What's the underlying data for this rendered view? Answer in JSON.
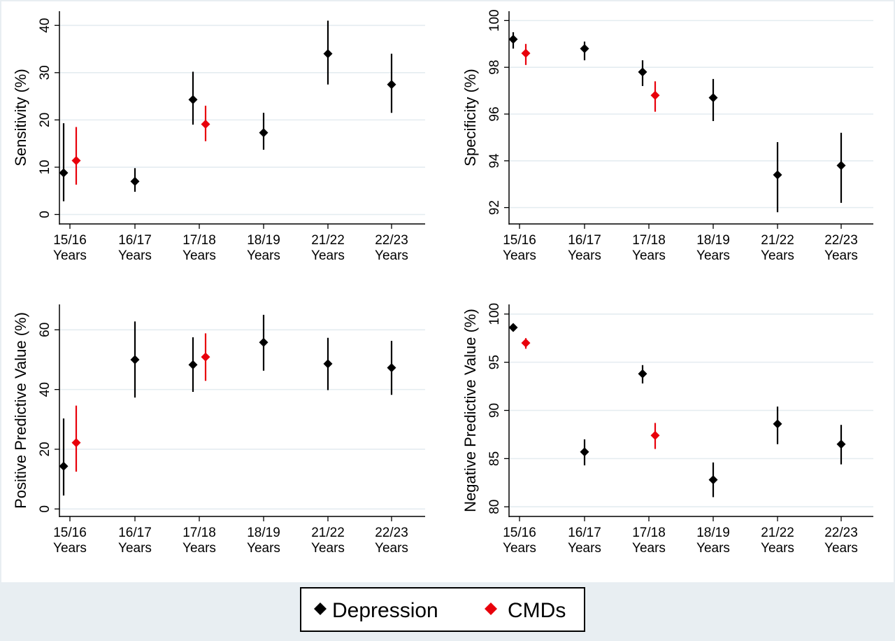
{
  "legend": {
    "entries": [
      {
        "label": "Depression",
        "color": "#000000"
      },
      {
        "label": "CMDs",
        "color": "#e8000b"
      }
    ]
  },
  "chart_data": [
    {
      "type": "scatter",
      "ylabel": "Sensitivity (%)",
      "categories": [
        "15/16\nYears",
        "16/17\nYears",
        "17/18\nYears",
        "18/19\nYears",
        "21/22\nYears",
        "22/23\nYears"
      ],
      "ylim": [
        -2,
        43
      ],
      "yticks": [
        0,
        10,
        20,
        30,
        40
      ],
      "grid": true,
      "series": [
        {
          "name": "Depression",
          "color": "#000000",
          "points": [
            {
              "category": "15/16\nYears",
              "value": 8.8,
              "lower": 2.8,
              "upper": 19.3
            },
            {
              "category": "16/17\nYears",
              "value": 7.0,
              "lower": 4.8,
              "upper": 9.8
            },
            {
              "category": "17/18\nYears",
              "value": 24.3,
              "lower": 19.0,
              "upper": 30.2
            },
            {
              "category": "18/19\nYears",
              "value": 17.3,
              "lower": 13.7,
              "upper": 21.5
            },
            {
              "category": "21/22\nYears",
              "value": 34.0,
              "lower": 27.5,
              "upper": 41.0
            },
            {
              "category": "22/23\nYears",
              "value": 27.5,
              "lower": 21.5,
              "upper": 34.0
            }
          ]
        },
        {
          "name": "CMDs",
          "color": "#e8000b",
          "points": [
            {
              "category": "15/16\nYears",
              "value": 11.4,
              "lower": 6.3,
              "upper": 18.5
            },
            {
              "category": "17/18\nYears",
              "value": 19.1,
              "lower": 15.5,
              "upper": 23.0
            }
          ]
        }
      ]
    },
    {
      "type": "scatter",
      "ylabel": "Specificity (%)",
      "categories": [
        "15/16\nYears",
        "16/17\nYears",
        "17/18\nYears",
        "18/19\nYears",
        "21/22\nYears",
        "22/23\nYears"
      ],
      "ylim": [
        91.3,
        100.4
      ],
      "yticks": [
        92,
        94,
        96,
        98,
        100
      ],
      "grid": true,
      "series": [
        {
          "name": "Depression",
          "color": "#000000",
          "points": [
            {
              "category": "15/16\nYears",
              "value": 99.2,
              "lower": 98.8,
              "upper": 99.5
            },
            {
              "category": "16/17\nYears",
              "value": 98.8,
              "lower": 98.3,
              "upper": 99.1
            },
            {
              "category": "17/18\nYears",
              "value": 97.8,
              "lower": 97.2,
              "upper": 98.3
            },
            {
              "category": "18/19\nYears",
              "value": 96.7,
              "lower": 95.7,
              "upper": 97.5
            },
            {
              "category": "21/22\nYears",
              "value": 93.4,
              "lower": 91.8,
              "upper": 94.8
            },
            {
              "category": "22/23\nYears",
              "value": 93.8,
              "lower": 92.2,
              "upper": 95.2
            }
          ]
        },
        {
          "name": "CMDs",
          "color": "#e8000b",
          "points": [
            {
              "category": "15/16\nYears",
              "value": 98.6,
              "lower": 98.1,
              "upper": 99.0
            },
            {
              "category": "17/18\nYears",
              "value": 96.8,
              "lower": 96.1,
              "upper": 97.4
            }
          ]
        }
      ]
    },
    {
      "type": "scatter",
      "ylabel": "Positive Predictive Value (%)",
      "categories": [
        "15/16\nYears",
        "16/17\nYears",
        "17/18\nYears",
        "18/19\nYears",
        "21/22\nYears",
        "22/23\nYears"
      ],
      "ylim": [
        -2.5,
        68.5
      ],
      "yticks": [
        0,
        20,
        40,
        60
      ],
      "grid": true,
      "series": [
        {
          "name": "Depression",
          "color": "#000000",
          "points": [
            {
              "category": "15/16\nYears",
              "value": 14.3,
              "lower": 4.5,
              "upper": 30.3
            },
            {
              "category": "16/17\nYears",
              "value": 50.0,
              "lower": 37.3,
              "upper": 62.8
            },
            {
              "category": "17/18\nYears",
              "value": 48.3,
              "lower": 39.2,
              "upper": 57.5
            },
            {
              "category": "18/19\nYears",
              "value": 55.8,
              "lower": 46.3,
              "upper": 65.0
            },
            {
              "category": "21/22\nYears",
              "value": 48.6,
              "lower": 39.8,
              "upper": 57.3
            },
            {
              "category": "22/23\nYears",
              "value": 47.3,
              "lower": 38.2,
              "upper": 56.3
            }
          ]
        },
        {
          "name": "CMDs",
          "color": "#e8000b",
          "points": [
            {
              "category": "15/16\nYears",
              "value": 22.2,
              "lower": 12.5,
              "upper": 34.6
            },
            {
              "category": "17/18\nYears",
              "value": 50.9,
              "lower": 42.9,
              "upper": 58.8
            }
          ]
        }
      ]
    },
    {
      "type": "scatter",
      "ylabel": "Negative Predictive Value (%)",
      "categories": [
        "15/16\nYears",
        "16/17\nYears",
        "17/18\nYears",
        "18/19\nYears",
        "21/22\nYears",
        "22/23\nYears"
      ],
      "ylim": [
        79.0,
        101.0
      ],
      "yticks": [
        80,
        85,
        90,
        95,
        100
      ],
      "grid": true,
      "series": [
        {
          "name": "Depression",
          "color": "#000000",
          "points": [
            {
              "category": "15/16\nYears",
              "value": 98.6,
              "lower": 98.3,
              "upper": 98.9
            },
            {
              "category": "16/17\nYears",
              "value": 85.7,
              "lower": 84.3,
              "upper": 87.0
            },
            {
              "category": "17/18\nYears",
              "value": 93.8,
              "lower": 92.8,
              "upper": 94.7
            },
            {
              "category": "18/19\nYears",
              "value": 82.8,
              "lower": 81.0,
              "upper": 84.6
            },
            {
              "category": "21/22\nYears",
              "value": 88.6,
              "lower": 86.5,
              "upper": 90.4
            },
            {
              "category": "22/23\nYears",
              "value": 86.5,
              "lower": 84.4,
              "upper": 88.5
            }
          ]
        },
        {
          "name": "CMDs",
          "color": "#e8000b",
          "points": [
            {
              "category": "15/16\nYears",
              "value": 97.0,
              "lower": 96.4,
              "upper": 97.5
            },
            {
              "category": "17/18\nYears",
              "value": 87.4,
              "lower": 86.0,
              "upper": 88.7
            }
          ]
        }
      ]
    }
  ]
}
